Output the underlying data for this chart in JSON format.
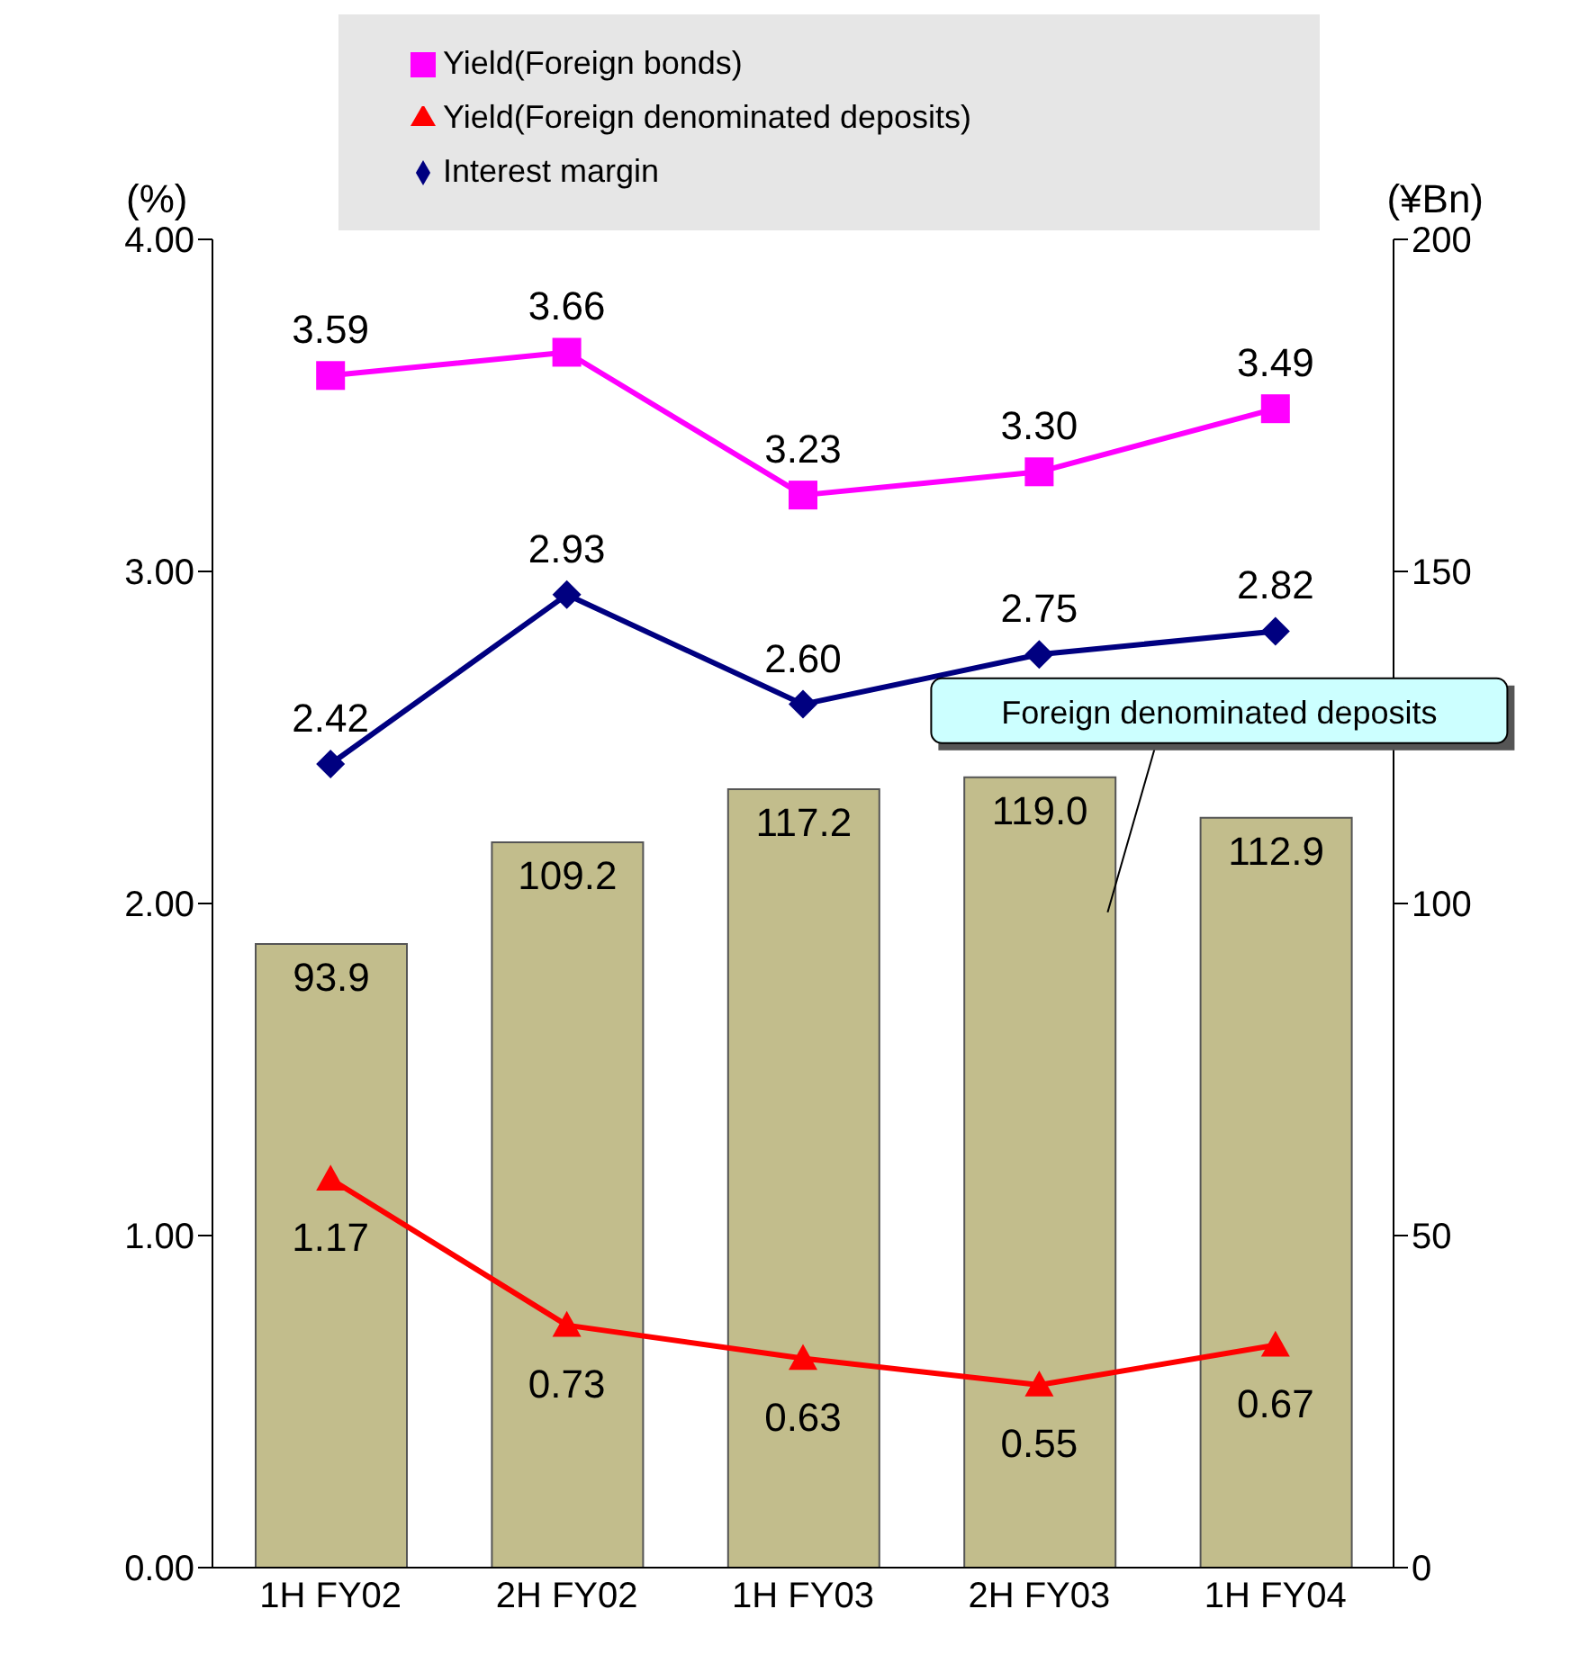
{
  "chart_data": {
    "type": "bar",
    "categories": [
      "1H FY02",
      "2H FY02",
      "1H FY03",
      "2H FY03",
      "1H FY04"
    ],
    "ylabel": "(%)",
    "y2label": "(¥Bn)",
    "ylim": [
      0,
      4
    ],
    "yticks": [
      {
        "value": 0,
        "label": "0.00"
      },
      {
        "value": 1,
        "label": "1.00"
      },
      {
        "value": 2,
        "label": "2.00"
      },
      {
        "value": 3,
        "label": "3.00"
      },
      {
        "value": 4,
        "label": "4.00"
      }
    ],
    "y2lim": [
      0,
      200
    ],
    "y2ticks": [
      0,
      50,
      100,
      150,
      200
    ],
    "series": [
      {
        "name": "Foreign denominated deposits",
        "axis": "y2",
        "color": "#c2bd8c",
        "values": [
          93.9,
          109.2,
          117.2,
          119.0,
          112.9
        ],
        "value_labels": [
          "93.9",
          "109.2",
          "117.2",
          "119.0",
          "112.9"
        ]
      },
      {
        "name": "Yield(Foreign bonds)",
        "type": "line",
        "color": "#ff00ff",
        "marker": "square",
        "values": [
          3.59,
          3.66,
          3.23,
          3.3,
          3.49
        ],
        "value_labels": [
          "3.59",
          "3.66",
          "3.23",
          "3.30",
          "3.49"
        ]
      },
      {
        "name": "Yield(Foreign denominated deposits)",
        "type": "line",
        "color": "#ff0000",
        "marker": "triangle",
        "values": [
          1.17,
          0.73,
          0.63,
          0.55,
          0.67
        ],
        "value_labels": [
          "1.17",
          "0.73",
          "0.63",
          "0.55",
          "0.67"
        ]
      },
      {
        "name": "Interest margin",
        "type": "line",
        "color": "#000080",
        "marker": "diamond",
        "values": [
          2.42,
          2.93,
          2.6,
          2.75,
          2.82
        ],
        "value_labels": [
          "2.42",
          "2.93",
          "2.60",
          "2.75",
          "2.82"
        ]
      }
    ],
    "grid": false,
    "legend": "top",
    "line_style": "solid"
  }
}
